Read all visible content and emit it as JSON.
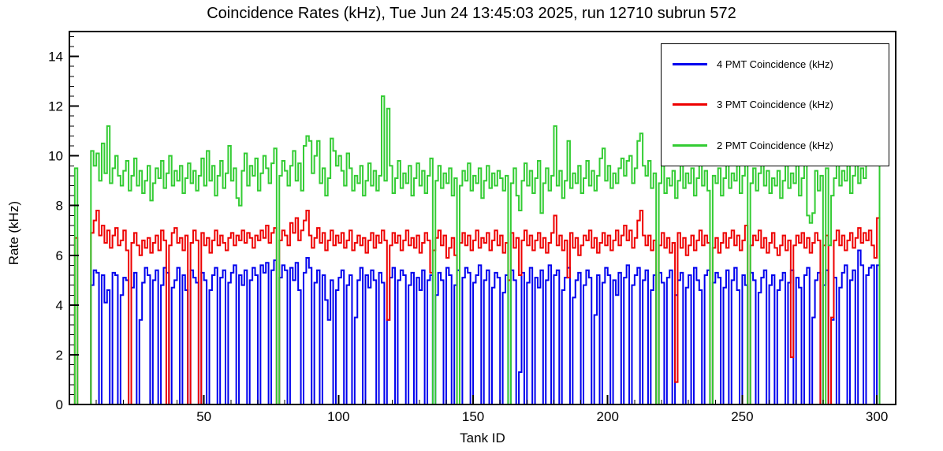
{
  "chart_data": {
    "type": "line",
    "subtype": "step-histogram",
    "title": "Coincidence Rates (kHz), Tue Jun 24 13:45:03 2025, run 12710 subrun 572",
    "xlabel": "Tank ID",
    "ylabel": "Rate (kHz)",
    "xlim": [
      0,
      307
    ],
    "ylim": [
      0,
      15
    ],
    "x_ticks": [
      50,
      100,
      150,
      200,
      250,
      300
    ],
    "y_ticks": [
      0,
      2,
      4,
      6,
      8,
      10,
      12,
      14
    ],
    "x_minor_step": 10,
    "y_minor_step": 0.4,
    "grid": false,
    "bin_x_start": 1,
    "legend_position": "top-right",
    "frame_color": "#000000",
    "series": [
      {
        "name": "4 PMT Coincidence (kHz)",
        "color": "#0000ee",
        "values": [
          0,
          0,
          0,
          0,
          0,
          0,
          0,
          4.8,
          5.4,
          5.3,
          0,
          5.2,
          4.1,
          4.6,
          0,
          5.3,
          5.2,
          0,
          4.4,
          5.1,
          5.0,
          0,
          4.7,
          5.3,
          0,
          3.4,
          4.9,
          5.5,
          5.2,
          0,
          5.0,
          5.4,
          0,
          4.8,
          5.5,
          5.3,
          0,
          4.7,
          5.0,
          5.5,
          0,
          5.2,
          4.6,
          0,
          5.4,
          5.1,
          4.9,
          0,
          5.3,
          5.0,
          0,
          4.6,
          5.2,
          5.5,
          0,
          5.1,
          5.4,
          0,
          4.9,
          5.3,
          5.6,
          0,
          5.2,
          4.8,
          5.4,
          0,
          5.0,
          5.5,
          5.2,
          0,
          5.6,
          5.3,
          5.7,
          0,
          5.4,
          5.8,
          0,
          5.1,
          5.6,
          5.4,
          0,
          5.5,
          5.0,
          5.7,
          4.6,
          0,
          5.3,
          5.9,
          5.5,
          0,
          4.9,
          5.4,
          0,
          5.2,
          4.2,
          3.4,
          5.0,
          0,
          4.6,
          5.1,
          5.4,
          0,
          4.8,
          5.2,
          0,
          3.5,
          5.0,
          5.5,
          0,
          5.2,
          4.7,
          5.4,
          5.0,
          0,
          5.3,
          4.9,
          0,
          3.4,
          5.1,
          5.5,
          0,
          5.0,
          5.4,
          5.2,
          0,
          4.8,
          5.3,
          0,
          5.1,
          4.6,
          5.4,
          0,
          5.0,
          5.2,
          0,
          4.4,
          5.3,
          5.0,
          0,
          5.5,
          5.2,
          0,
          4.8,
          5.4,
          0,
          5.1,
          5.5,
          5.3,
          0,
          4.9,
          5.2,
          5.6,
          0,
          5.0,
          5.4,
          0,
          4.7,
          5.3,
          5.1,
          0,
          4.5,
          5.2,
          0,
          5.4,
          5.0,
          0,
          1.3,
          5.3,
          0,
          4.9,
          5.5,
          0,
          5.1,
          4.7,
          5.4,
          0,
          5.0,
          5.6,
          0,
          5.2,
          5.4,
          0,
          4.6,
          5.1,
          5.5,
          0,
          4.3,
          5.0,
          5.3,
          0,
          4.8,
          5.4,
          5.1,
          0,
          3.6,
          5.2,
          0,
          4.9,
          5.5,
          5.2,
          0,
          5.0,
          4.4,
          5.3,
          0,
          5.1,
          5.6,
          0,
          4.8,
          5.2,
          5.5,
          0,
          5.0,
          5.4,
          0,
          4.6,
          5.2,
          0,
          5.3,
          4.9,
          0,
          5.1,
          5.4,
          0,
          4.4,
          5.0,
          5.3,
          0,
          4.7,
          5.2,
          0,
          5.5,
          5.0,
          4.6,
          0,
          5.2,
          5.4,
          0,
          4.9,
          5.3,
          5.1,
          0,
          4.7,
          5.4,
          0,
          5.0,
          5.5,
          4.6,
          0,
          5.2,
          4.8,
          0,
          5.3,
          5.0,
          0,
          4.5,
          5.1,
          5.4,
          0,
          4.8,
          5.2,
          0,
          4.6,
          5.0,
          5.3,
          0,
          4.9,
          5.4,
          0,
          5.1,
          4.7,
          0,
          5.2,
          5.5,
          0,
          3.5,
          5.0,
          5.3,
          0,
          4.8,
          5.4,
          0,
          3.4,
          5.1,
          0,
          4.7,
          5.3,
          5.6,
          0,
          5.0,
          5.4,
          0,
          6.2,
          5.6,
          0,
          5.2,
          5.5,
          5.6,
          0,
          5.6,
          0,
          0,
          0,
          0,
          0
        ]
      },
      {
        "name": "3 PMT Coincidence (kHz)",
        "color": "#ee0000",
        "values": [
          0,
          6.7,
          0,
          0,
          0,
          0,
          0,
          6.9,
          7.4,
          7.8,
          6.8,
          7.2,
          6.5,
          7.0,
          6.3,
          6.8,
          7.1,
          6.4,
          6.6,
          7.0,
          6.2,
          0,
          6.5,
          6.9,
          6.4,
          6.0,
          6.6,
          6.3,
          6.7,
          6.1,
          6.5,
          6.8,
          6.2,
          7.0,
          6.6,
          0,
          6.4,
          6.9,
          7.1,
          6.5,
          6.7,
          6.2,
          6.8,
          0,
          6.5,
          7.0,
          6.6,
          0,
          6.9,
          6.4,
          6.7,
          6.1,
          6.6,
          7.0,
          6.4,
          6.8,
          6.5,
          6.2,
          6.7,
          6.9,
          6.4,
          6.8,
          6.6,
          7.0,
          6.5,
          6.9,
          6.7,
          6.3,
          6.8,
          6.6,
          7.0,
          6.7,
          7.2,
          6.5,
          6.9,
          7.1,
          0,
          6.6,
          7.0,
          6.8,
          6.4,
          7.3,
          6.9,
          7.5,
          6.6,
          7.0,
          7.4,
          7.8,
          6.8,
          6.3,
          6.7,
          7.1,
          6.5,
          6.9,
          6.2,
          6.6,
          7.0,
          6.4,
          6.8,
          6.5,
          6.9,
          6.3,
          6.6,
          7.0,
          6.2,
          6.5,
          6.8,
          6.4,
          6.7,
          6.1,
          6.6,
          6.9,
          6.3,
          6.8,
          6.5,
          7.0,
          6.6,
          3.4,
          6.4,
          6.9,
          6.5,
          6.8,
          6.2,
          6.6,
          7.0,
          6.4,
          6.7,
          6.3,
          6.8,
          6.1,
          6.5,
          6.9,
          6.6,
          5.3,
          6.2,
          6.7,
          7.0,
          6.4,
          6.8,
          5.9,
          6.3,
          6.7,
          6.0,
          0,
          6.5,
          6.9,
          6.4,
          6.8,
          6.2,
          6.6,
          7.0,
          6.3,
          6.7,
          6.5,
          6.9,
          6.2,
          6.6,
          7.0,
          6.4,
          6.8,
          6.1,
          6.5,
          5.0,
          6.9,
          6.3,
          6.7,
          5.2,
          6.6,
          7.0,
          6.4,
          6.8,
          6.2,
          6.6,
          6.9,
          6.3,
          6.7,
          6.1,
          6.5,
          6.9,
          7.6,
          6.4,
          6.8,
          6.2,
          6.6,
          5.1,
          6.9,
          6.3,
          6.7,
          6.0,
          6.4,
          6.8,
          6.6,
          7.0,
          6.3,
          6.7,
          6.1,
          6.5,
          6.9,
          6.4,
          6.8,
          6.2,
          6.6,
          7.0,
          6.4,
          6.8,
          7.2,
          6.6,
          7.0,
          6.3,
          6.7,
          7.4,
          7.8,
          6.8,
          6.4,
          6.8,
          6.2,
          6.6,
          0,
          6.4,
          6.9,
          6.3,
          6.7,
          6.1,
          6.5,
          0.9,
          6.9,
          6.3,
          6.7,
          6.0,
          6.4,
          6.8,
          6.2,
          6.6,
          7.0,
          6.4,
          6.8,
          6.5,
          0,
          6.3,
          6.7,
          6.1,
          6.5,
          6.9,
          6.3,
          6.7,
          7.0,
          6.4,
          6.8,
          6.2,
          6.6,
          7.2,
          0,
          6.4,
          6.8,
          6.6,
          7.0,
          6.3,
          6.7,
          6.1,
          6.5,
          6.9,
          6.3,
          6.0,
          6.4,
          6.8,
          6.2,
          6.6,
          1.9,
          6.4,
          6.8,
          6.5,
          6.9,
          6.3,
          6.7,
          6.1,
          6.5,
          6.9,
          6.6,
          0,
          6.4,
          6.8,
          0,
          3.5,
          6.6,
          7.0,
          6.4,
          6.8,
          6.2,
          6.6,
          6.9,
          6.3,
          6.7,
          7.1,
          6.5,
          6.9,
          6.6,
          7.0,
          6.4,
          5.9,
          7.5,
          0,
          0,
          0,
          0,
          0
        ]
      },
      {
        "name": "2 PMT Coincidence (kHz)",
        "color": "#33cc33",
        "values": [
          0,
          9.5,
          0,
          0,
          0,
          0,
          0,
          10.2,
          9.6,
          10.1,
          9.0,
          10.5,
          9.3,
          11.2,
          8.9,
          9.5,
          10.0,
          9.2,
          8.8,
          9.4,
          9.8,
          8.6,
          9.2,
          9.9,
          8.8,
          9.4,
          8.5,
          9.0,
          9.6,
          8.2,
          8.9,
          9.5,
          9.1,
          9.8,
          8.7,
          9.3,
          10.0,
          8.8,
          9.4,
          9.0,
          9.6,
          8.5,
          9.1,
          9.7,
          8.9,
          9.4,
          8.6,
          9.2,
          9.9,
          8.8,
          10.2,
          9.0,
          9.6,
          8.4,
          9.2,
          9.8,
          8.7,
          9.3,
          10.4,
          9.0,
          9.5,
          8.3,
          8.0,
          9.4,
          10.1,
          8.8,
          9.6,
          9.2,
          9.9,
          8.6,
          9.3,
          10.0,
          9.5,
          8.9,
          9.7,
          10.3,
          0,
          9.2,
          9.8,
          9.4,
          8.8,
          9.6,
          10.2,
          9.0,
          9.7,
          8.6,
          10.4,
          10.8,
          10.6,
          9.3,
          10.0,
          10.6,
          8.9,
          9.5,
          8.4,
          9.1,
          10.7,
          10.2,
          9.6,
          10.0,
          9.4,
          8.8,
          10.1,
          9.5,
          8.6,
          9.2,
          8.9,
          9.6,
          8.4,
          9.0,
          9.7,
          8.8,
          9.4,
          8.6,
          9.2,
          12.4,
          9.0,
          11.9,
          9.6,
          8.5,
          9.1,
          9.8,
          8.7,
          9.3,
          8.9,
          9.6,
          8.4,
          9.1,
          9.7,
          8.8,
          9.4,
          8.5,
          9.2,
          9.9,
          0,
          9.0,
          9.6,
          8.7,
          9.3,
          8.9,
          9.5,
          8.4,
          9.1,
          0,
          8.8,
          9.4,
          9.0,
          9.7,
          8.6,
          9.2,
          8.9,
          9.5,
          8.3,
          9.0,
          9.6,
          8.7,
          9.3,
          8.8,
          9.4,
          9.1,
          8.6,
          9.2,
          0,
          8.9,
          9.5,
          8.4,
          7.8,
          9.0,
          9.7,
          8.8,
          9.4,
          8.5,
          9.1,
          9.8,
          7.7,
          8.9,
          9.5,
          8.6,
          9.2,
          11.2,
          8.8,
          9.4,
          8.3,
          9.0,
          10.6,
          8.7,
          9.3,
          8.9,
          9.6,
          8.5,
          9.1,
          9.8,
          8.8,
          9.4,
          8.6,
          9.2,
          9.9,
          10.3,
          9.0,
          9.6,
          8.7,
          9.3,
          8.9,
          9.5,
          9.9,
          9.2,
          9.8,
          10.0,
          8.9,
          9.5,
          10.6,
          10.9,
          9.6,
          9.2,
          9.8,
          8.7,
          9.3,
          0,
          8.9,
          9.6,
          8.5,
          9.1,
          8.8,
          9.4,
          8.3,
          9.0,
          9.6,
          8.7,
          9.3,
          8.9,
          9.5,
          8.4,
          9.1,
          9.7,
          8.8,
          9.4,
          8.6,
          0,
          9.2,
          8.9,
          9.5,
          8.4,
          9.1,
          9.8,
          8.7,
          9.3,
          9.0,
          9.6,
          8.5,
          9.2,
          10.7,
          0,
          8.9,
          9.5,
          8.6,
          9.3,
          9.9,
          8.8,
          9.4,
          8.5,
          9.1,
          8.8,
          9.4,
          8.3,
          9.0,
          9.6,
          8.7,
          9.3,
          8.9,
          9.6,
          8.4,
          9.1,
          9.7,
          7.6,
          7.3,
          7.7,
          9.4,
          8.6,
          9.2,
          0,
          9.5,
          6.4,
          8.4,
          9.1,
          9.7,
          8.8,
          9.4,
          9.0,
          9.6,
          8.5,
          9.2,
          9.8,
          8.9,
          9.5,
          9.1,
          9.7,
          10.0,
          10.2,
          10.5,
          10.3,
          0,
          0,
          0,
          0,
          0
        ]
      }
    ]
  }
}
